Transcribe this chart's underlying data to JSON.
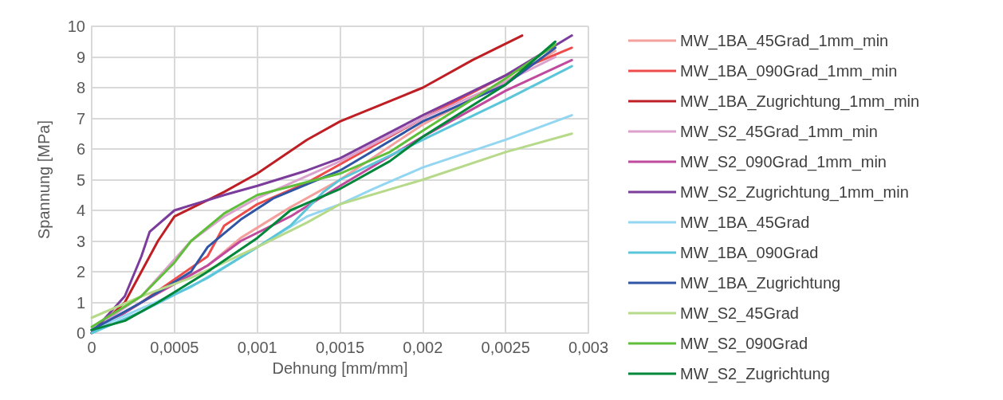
{
  "chart_data": {
    "type": "line",
    "xlabel": "Dehnung [mm/mm]",
    "ylabel": "Spannung [MPa]",
    "xlim": [
      0,
      0.003
    ],
    "ylim": [
      0,
      10
    ],
    "xticks": [
      0,
      {
        "value": 0.0005,
        "label": "0,0005"
      },
      {
        "value": 0.001,
        "label": "0,001"
      },
      {
        "value": 0.0015,
        "label": "0,0015"
      },
      {
        "value": 0.002,
        "label": "0,002"
      },
      {
        "value": 0.0025,
        "label": "0,0025"
      },
      {
        "value": 0.003,
        "label": "0,003"
      }
    ],
    "yticks": [
      0,
      1,
      2,
      3,
      4,
      5,
      6,
      7,
      8,
      9,
      10
    ],
    "grid": true,
    "legend": "right",
    "marker": "none",
    "line_style": "solid",
    "series": [
      {
        "name": "MW_1BA_45Grad_1mm_min",
        "color": "#f4a09c",
        "x": [
          0,
          0.0003,
          0.0007,
          0.0009,
          0.0012,
          0.0015,
          0.002,
          0.0025,
          0.0028
        ],
        "values": [
          0,
          1,
          2.2,
          3.1,
          4.1,
          5.0,
          6.8,
          8.2,
          9.2
        ]
      },
      {
        "name": "MW_1BA_090Grad_1mm_min",
        "color": "#ee4b4b",
        "x": [
          0,
          0.0003,
          0.0007,
          0.0008,
          0.001,
          0.0013,
          0.0015,
          0.002,
          0.0025,
          0.0029
        ],
        "values": [
          0,
          1,
          2.5,
          3.5,
          4.2,
          4.9,
          5.5,
          7.0,
          8.4,
          9.3
        ]
      },
      {
        "name": "MW_1BA_Zugrichtung_1mm_min",
        "color": "#be1e24",
        "x": [
          0,
          0.0002,
          0.00035,
          0.0004,
          0.0005,
          0.0008,
          0.001,
          0.0013,
          0.0015,
          0.002,
          0.0023,
          0.0026
        ],
        "values": [
          0,
          1,
          2.5,
          3.0,
          3.8,
          4.6,
          5.2,
          6.3,
          6.9,
          8.0,
          8.9,
          9.7
        ]
      },
      {
        "name": "MW_S2_45Grad_1mm_min",
        "color": "#dba0cc",
        "x": [
          0,
          0.0003,
          0.0006,
          0.0008,
          0.001,
          0.0015,
          0.002,
          0.0025,
          0.0028
        ],
        "values": [
          0.1,
          1.2,
          3.0,
          3.8,
          4.4,
          5.6,
          7.0,
          8.2,
          9.0
        ]
      },
      {
        "name": "MW_S2_090Grad_1mm_min",
        "color": "#c04a9c",
        "x": [
          0,
          0.0003,
          0.0007,
          0.0009,
          0.0012,
          0.0015,
          0.002,
          0.0025,
          0.0029
        ],
        "values": [
          0,
          1,
          2.2,
          3.0,
          3.8,
          4.8,
          6.4,
          7.9,
          8.9
        ]
      },
      {
        "name": "MW_S2_Zugrichtung_1mm_min",
        "color": "#7b3c9c",
        "x": [
          0,
          0.0002,
          0.0003,
          0.00035,
          0.0005,
          0.0008,
          0.001,
          0.0013,
          0.0015,
          0.002,
          0.0025,
          0.0029
        ],
        "values": [
          0,
          1.2,
          2.5,
          3.3,
          4.0,
          4.5,
          4.8,
          5.3,
          5.7,
          7.1,
          8.4,
          9.7
        ]
      },
      {
        "name": "MW_1BA_45Grad",
        "color": "#93d6f2",
        "x": [
          0,
          0.0003,
          0.0006,
          0.001,
          0.0013,
          0.0015,
          0.0017,
          0.002,
          0.0025,
          0.0029
        ],
        "values": [
          0.1,
          0.8,
          1.5,
          2.8,
          3.8,
          4.2,
          4.7,
          5.4,
          6.3,
          7.1
        ]
      },
      {
        "name": "MW_1BA_090Grad",
        "color": "#5bc5d9",
        "x": [
          0,
          0.0003,
          0.0007,
          0.001,
          0.0012,
          0.0014,
          0.0015,
          0.002,
          0.0025,
          0.0029
        ],
        "values": [
          0,
          0.7,
          1.8,
          2.8,
          3.5,
          4.6,
          5.0,
          6.3,
          7.6,
          8.7
        ]
      },
      {
        "name": "MW_1BA_Zugrichtung",
        "color": "#2f55a4",
        "x": [
          0,
          0.0003,
          0.0006,
          0.0007,
          0.0009,
          0.0011,
          0.0015,
          0.002,
          0.0025,
          0.0028
        ],
        "values": [
          0.1,
          1,
          2,
          2.8,
          3.7,
          4.4,
          5.3,
          6.9,
          8.1,
          9.3
        ]
      },
      {
        "name": "MW_S2_45Grad",
        "color": "#b6d98a",
        "x": [
          0,
          0.0003,
          0.0006,
          0.001,
          0.0013,
          0.0015,
          0.002,
          0.0025,
          0.0029
        ],
        "values": [
          0.5,
          1.2,
          1.8,
          2.8,
          3.6,
          4.2,
          5.0,
          5.9,
          6.5
        ]
      },
      {
        "name": "MW_S2_090Grad",
        "color": "#5fbf3b",
        "x": [
          0,
          0.0003,
          0.0005,
          0.0006,
          0.0008,
          0.001,
          0.0015,
          0.0018,
          0.002,
          0.0025,
          0.0028
        ],
        "values": [
          0.2,
          1.2,
          2.3,
          3.0,
          3.9,
          4.5,
          5.2,
          5.9,
          6.6,
          8.3,
          9.4
        ]
      },
      {
        "name": "MW_S2_Zugrichtung",
        "color": "#00873a",
        "x": [
          0,
          0.0002,
          0.0004,
          0.0007,
          0.001,
          0.0012,
          0.0015,
          0.0018,
          0.002,
          0.0025,
          0.0028
        ],
        "values": [
          0.1,
          0.4,
          1.0,
          2.0,
          3.1,
          4.0,
          4.7,
          5.6,
          6.4,
          8.1,
          9.5
        ]
      }
    ]
  }
}
